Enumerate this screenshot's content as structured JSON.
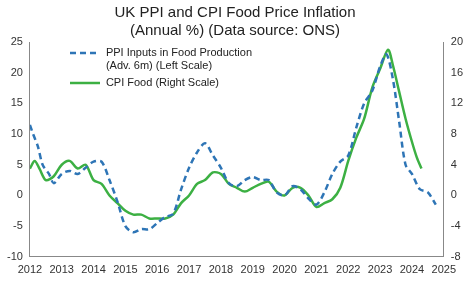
{
  "chart_data": {
    "type": "line",
    "title": "UK PPI and CPI Food Price Inflation",
    "subtitle": "(Annual %) (Data source: ONS)",
    "xlim": [
      2012,
      2025
    ],
    "xticks": [
      2012,
      2013,
      2014,
      2015,
      2016,
      2017,
      2018,
      2019,
      2020,
      2021,
      2022,
      2023,
      2024,
      2025
    ],
    "ylim": [
      -10,
      25
    ],
    "yticks": [
      -10,
      -5,
      0,
      5,
      10,
      15,
      20,
      25
    ],
    "y2lim": [
      -8,
      20
    ],
    "y2ticks": [
      -8,
      -4,
      0,
      4,
      8,
      12,
      16,
      20
    ],
    "grid": false,
    "legend": "upper left",
    "series": [
      {
        "name": "PPI Inputs in Food Production (Adv. 6m) (Left Scale)",
        "color": "#2e75b6",
        "line_style": "dashed",
        "axis": "y",
        "x": [
          2012.0,
          2012.1,
          2012.25,
          2012.4,
          2012.6,
          2012.75,
          2013.0,
          2013.25,
          2013.5,
          2013.75,
          2014.0,
          2014.25,
          2014.5,
          2014.75,
          2015.0,
          2015.25,
          2015.5,
          2015.75,
          2016.0,
          2016.25,
          2016.5,
          2016.75,
          2017.0,
          2017.25,
          2017.5,
          2017.75,
          2018.0,
          2018.25,
          2018.5,
          2018.75,
          2019.0,
          2019.25,
          2019.5,
          2019.75,
          2020.0,
          2020.25,
          2020.5,
          2020.75,
          2021.0,
          2021.25,
          2021.5,
          2021.75,
          2022.0,
          2022.25,
          2022.5,
          2022.75,
          2023.0,
          2023.2,
          2023.4,
          2023.6,
          2023.8,
          2024.0,
          2024.25,
          2024.5,
          2024.75
        ],
        "values": [
          11.5,
          10,
          8,
          5,
          3.5,
          2,
          3.5,
          4,
          3.5,
          4.5,
          5.5,
          5.5,
          2.5,
          -1,
          -5,
          -6,
          -5.5,
          -5.5,
          -4.5,
          -3.5,
          -3,
          1,
          4.5,
          7,
          8.5,
          6.5,
          4.5,
          2,
          1.5,
          2.5,
          3,
          2.5,
          2.5,
          0.5,
          0,
          1.5,
          1,
          -0.5,
          -1.5,
          0.5,
          3.5,
          5.5,
          6.5,
          11,
          15,
          17,
          21,
          23,
          19,
          12,
          5,
          3.5,
          1,
          0.5,
          -1.5
        ]
      },
      {
        "name": "CPI Food (Right Scale)",
        "color": "#3cb043",
        "line_style": "solid",
        "axis": "y2",
        "x": [
          2012.0,
          2012.15,
          2012.3,
          2012.5,
          2012.75,
          2013.0,
          2013.25,
          2013.5,
          2013.75,
          2014.0,
          2014.25,
          2014.5,
          2014.75,
          2015.0,
          2015.25,
          2015.5,
          2015.75,
          2016.0,
          2016.25,
          2016.5,
          2016.75,
          2017.0,
          2017.25,
          2017.5,
          2017.75,
          2018.0,
          2018.25,
          2018.5,
          2018.75,
          2019.0,
          2019.25,
          2019.5,
          2019.75,
          2020.0,
          2020.25,
          2020.5,
          2020.75,
          2021.0,
          2021.25,
          2021.5,
          2021.75,
          2022.0,
          2022.25,
          2022.5,
          2022.75,
          2023.0,
          2023.25,
          2023.4,
          2023.6,
          2023.8,
          2024.0,
          2024.15,
          2024.3
        ],
        "values": [
          3.5,
          4.5,
          3.5,
          2,
          2.5,
          4,
          4.5,
          3.5,
          4,
          2,
          1.5,
          0,
          -1,
          -2,
          -2.5,
          -2.5,
          -3,
          -3,
          -3,
          -2.5,
          -1,
          0,
          1.5,
          2,
          3,
          2.8,
          1.5,
          1,
          0.5,
          1,
          1.5,
          1.8,
          0.5,
          0,
          1,
          1,
          0,
          -1.5,
          -1,
          -0.5,
          1,
          4.5,
          7.5,
          10,
          14,
          16.5,
          19,
          17,
          13.5,
          10,
          7,
          5,
          3.5
        ]
      }
    ]
  }
}
